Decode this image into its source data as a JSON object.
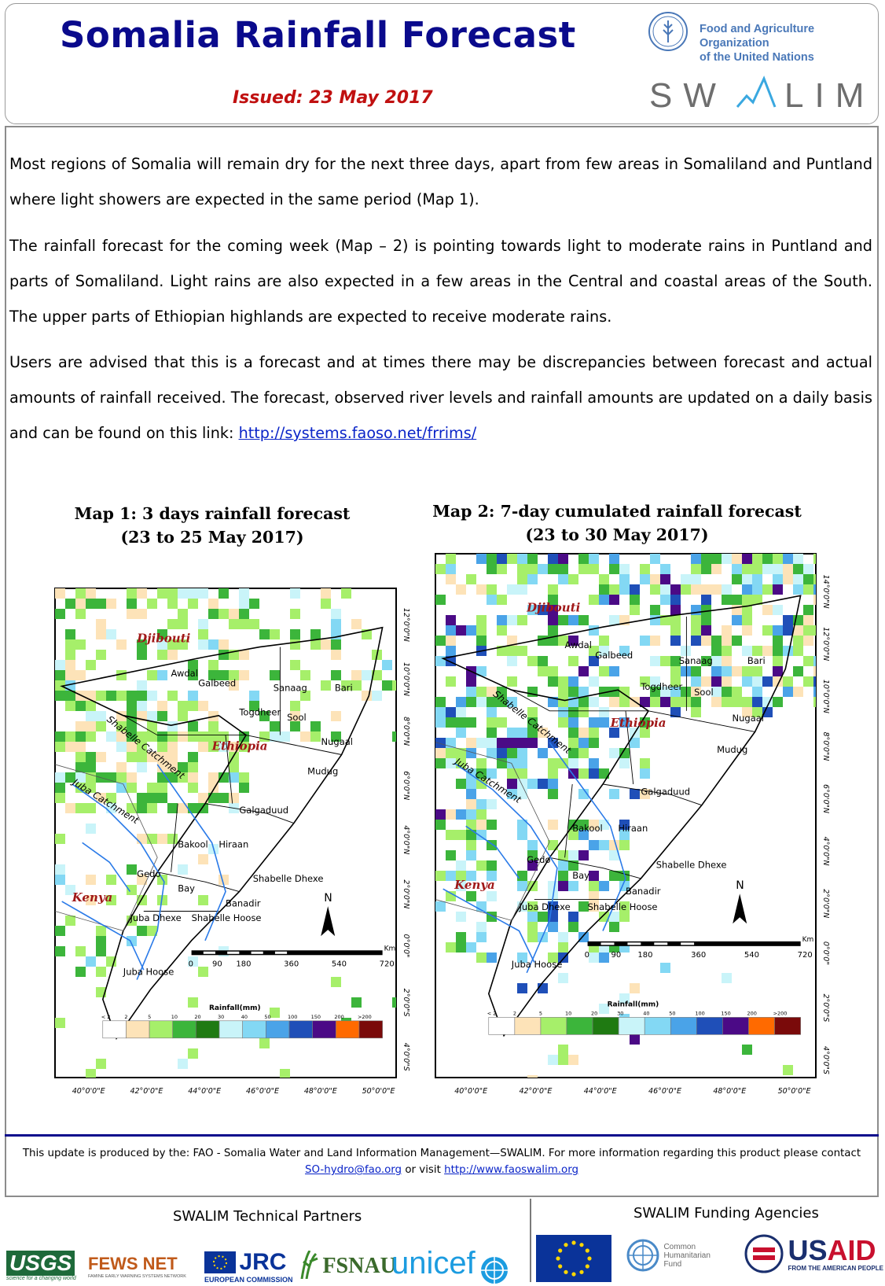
{
  "header": {
    "title": "Somalia Rainfall Forecast",
    "issued": "Issued:  23 May 2017",
    "fao_line1": "Food and Agriculture Organization",
    "fao_line2": "of the United Nations",
    "swalim_logo": "SWALIM"
  },
  "body": {
    "paragraph1": "Most regions of Somalia will remain dry for the next three days, apart from few areas in Somaliland and Puntland where light showers are expected in the same period (Map 1).",
    "paragraph2": "The rainfall forecast for the coming week (Map – 2) is pointing towards light to moderate rains in Puntland and parts of Somaliland.  Light rains are also expected in a few areas in the Central and coastal areas of the South. The upper parts of Ethiopian highlands are expected to receive moderate rains.",
    "paragraph3_text": "Users are  advised that this is a forecast  and at times there may be discrepancies between forecast and actual amounts of rainfall received. The forecast, observed river levels and rainfall amounts are updated on a daily basis and can be found on this link: ",
    "paragraph3_link": "http://systems.faoso.net/frrims/"
  },
  "maps": [
    {
      "title_line1": "Map 1: 3 days rainfall forecast",
      "title_line2": "(23 to 25 May 2017)"
    },
    {
      "title_line1": "Map 2: 7-day cumulated rainfall forecast",
      "title_line2": "(23 to 30 May 2017)"
    }
  ],
  "map_labels": {
    "countries": [
      "Djibouti",
      "Ethiopia",
      "Kenya"
    ],
    "regions": [
      "Awdal",
      "Galbeed",
      "Sanaag",
      "Bari",
      "Togdheer",
      "Sool",
      "Nugaal",
      "Mudug",
      "Galgaduud",
      "Bakool",
      "Hiraan",
      "Gedo",
      "Bay",
      "Shabelle Dhexe",
      "Banadir",
      "Juba Dhexe",
      "Shabelle Hoose",
      "Juba Hoose"
    ],
    "catchments": [
      "Shabelle Catchment",
      "Juba Catchment"
    ],
    "north_arrow": "N",
    "scale_ticks": [
      "0",
      "90",
      "180",
      "360",
      "540",
      "720"
    ],
    "scale_unit": "Km",
    "legend_title": "Rainfall(mm)",
    "legend_ticks": [
      "< 2",
      "2",
      "5",
      "10",
      "20",
      "30",
      "40",
      "50",
      "100",
      "150",
      "200",
      ">200"
    ],
    "legend_colors": [
      "#ffffff",
      "#fde3b8",
      "#a6ef6a",
      "#3cb53b",
      "#1f7a12",
      "#c9f4f9",
      "#83d8f4",
      "#4aa3e8",
      "#1f4fb8",
      "#4b0a86",
      "#ff6a00",
      "#7a0a0a"
    ],
    "lon_labels": [
      "40°0'0\"E",
      "42°0'0\"E",
      "44°0'0\"E",
      "46°0'0\"E",
      "48°0'0\"E",
      "50°0'0\"E"
    ],
    "lat_labels": [
      "12°0'0\"N",
      "10°0'0\"N",
      "8°0'0\"N",
      "6°0'0\"N",
      "4°0'0\"N",
      "2°0'0\"N",
      "0°0'0\"",
      "2°0'0\"S",
      "4°0'0\"S"
    ],
    "lat_labels_map2": [
      "14°0'0\"N",
      "12°0'0\"N",
      "10°0'0\"N",
      "8°0'0\"N",
      "6°0'0\"N",
      "4°0'0\"N",
      "2°0'0\"N",
      "0°0'0\"",
      "2°0'0\"S",
      "4°0'0\"S"
    ]
  },
  "footer": {
    "line1": "This update is produced by the: FAO - Somalia Water and Land Information Management—SWALIM. For more information regarding this product please contact",
    "email": "SO-hydro@fao.org",
    "or_visit": " or visit ",
    "website": "http://www.faoswalim.org"
  },
  "partners": {
    "technical_label": "SWALIM Technical Partners",
    "funding_label": "SWALIM Funding Agencies",
    "technical_logos": [
      "USGS",
      "FEWS NET",
      "JRC",
      "FSNAU",
      "unicef"
    ],
    "usgs_tagline": "science for a changing world",
    "fews_tagline": "FAMINE EARLY WARNING SYSTEMS NETWORK",
    "jrc_tagline": "EUROPEAN COMMISSION",
    "funding_logos": [
      "European Union",
      "Common Humanitarian Fund",
      "USAID"
    ],
    "chf_text": [
      "Common",
      "Humanitarian",
      "Fund"
    ],
    "usaid_tagline": "FROM THE AMERICAN PEOPLE"
  }
}
